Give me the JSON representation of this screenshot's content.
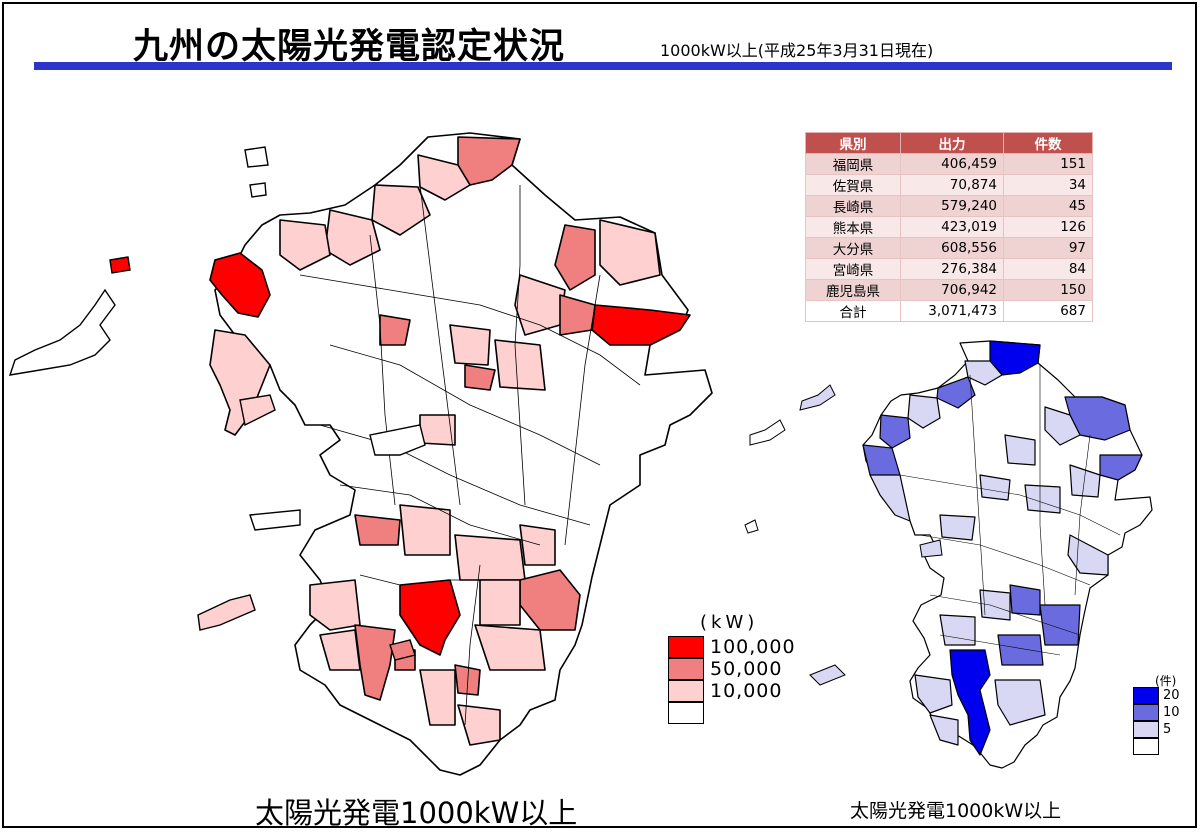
{
  "header": {
    "title": "九州の太陽光発電認定状況",
    "subtitle": "1000kW以上(平成25年3月31日現在)"
  },
  "colors": {
    "rule": "#2b35c7",
    "kw_high": "#ff0000",
    "kw_mid": "#f08080",
    "kw_low": "#ffd0d0",
    "kw_none": "#ffffff",
    "cnt_high": "#0000ee",
    "cnt_mid": "#6b6be0",
    "cnt_low": "#d8d8f4"
  },
  "table": {
    "headers": [
      "県別",
      "出力",
      "件数"
    ],
    "rows": [
      {
        "pref": "福岡県",
        "output": "406,459",
        "count": "151"
      },
      {
        "pref": "佐賀県",
        "output": "70,874",
        "count": "34"
      },
      {
        "pref": "長崎県",
        "output": "579,240",
        "count": "45"
      },
      {
        "pref": "熊本県",
        "output": "423,019",
        "count": "126"
      },
      {
        "pref": "大分県",
        "output": "608,556",
        "count": "97"
      },
      {
        "pref": "宮崎県",
        "output": "276,384",
        "count": "84"
      },
      {
        "pref": "鹿児島県",
        "output": "706,942",
        "count": "150"
      }
    ],
    "total": {
      "pref": "合計",
      "output": "3,071,473",
      "count": "687"
    }
  },
  "legend_kw": {
    "unit": "(kW)",
    "items": [
      {
        "label": "100,000",
        "color": "#ff0000"
      },
      {
        "label": "50,000",
        "color": "#f08080"
      },
      {
        "label": "10,000",
        "color": "#ffd0d0"
      },
      {
        "label": "",
        "color": "#ffffff"
      }
    ]
  },
  "legend_count": {
    "unit": "(件)",
    "items": [
      {
        "label": "20",
        "color": "#0000ee"
      },
      {
        "label": "10",
        "color": "#6b6be0"
      },
      {
        "label": "5",
        "color": "#d8d8f4"
      },
      {
        "label": "",
        "color": "#ffffff"
      }
    ]
  },
  "captions": {
    "left": "太陽光発電1000kW以上",
    "right": "太陽光発電1000kW以上"
  }
}
